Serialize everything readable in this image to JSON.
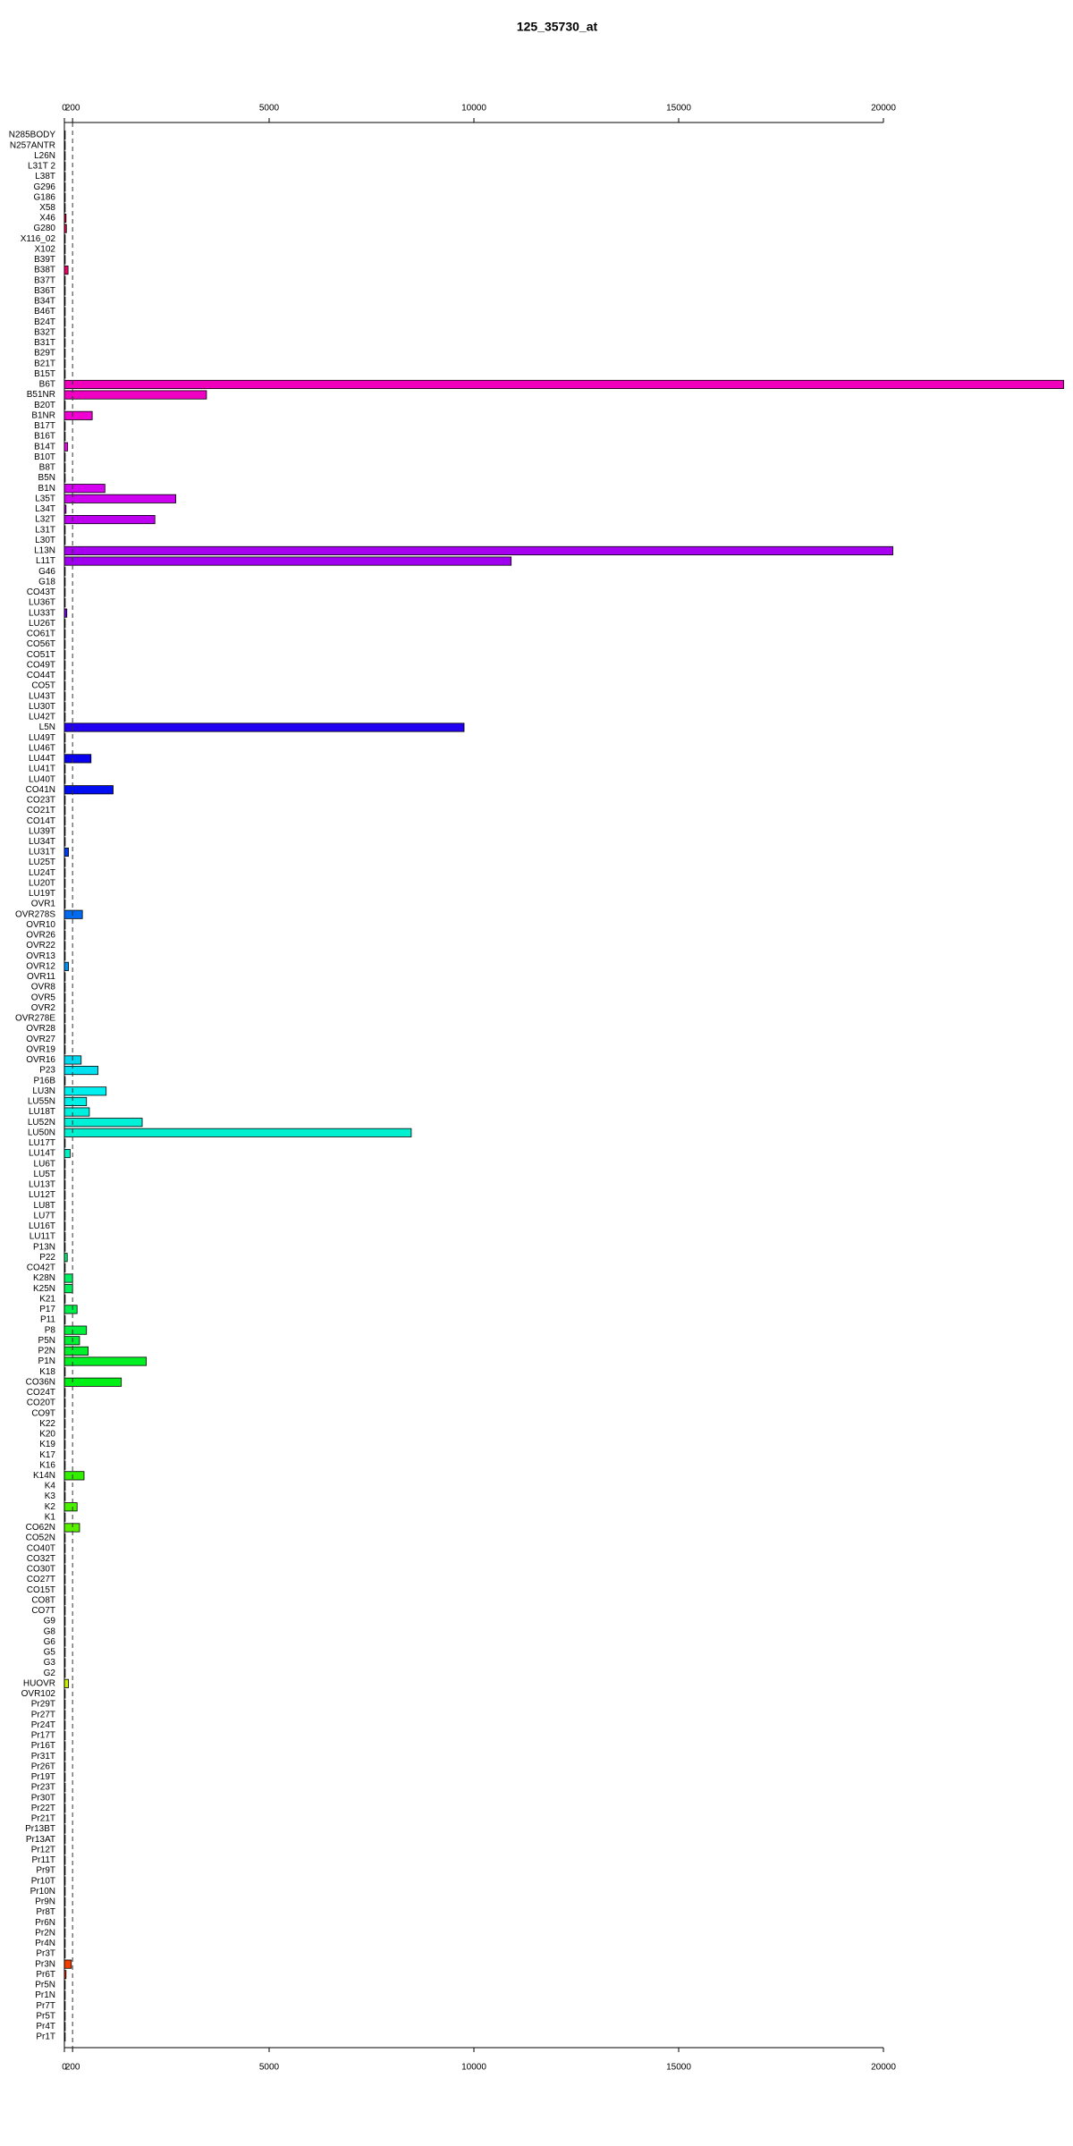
{
  "chart_data": {
    "type": "barh",
    "title": "125_35730_at",
    "categories": [
      "N285BODY",
      "N257ANTR",
      "L26N",
      "L31T 2",
      "L38T",
      "G296",
      "G186",
      "X58",
      "X46",
      "G280",
      "X116_02",
      "X102",
      "B39T",
      "B38T",
      "B37T",
      "B36T",
      "B34T",
      "B46T",
      "B24T",
      "B32T",
      "B31T",
      "B29T",
      "B21T",
      "B15T",
      "B6T",
      "B51NR",
      "B20T",
      "B1NR",
      "B17T",
      "B16T",
      "B14T",
      "B10T",
      "B8T",
      "B5N",
      "B1N",
      "L35T",
      "L34T",
      "L32T",
      "L31T",
      "L30T",
      "L13N",
      "L11T",
      "G46",
      "G18",
      "CO43T",
      "LU36T",
      "LU33T",
      "LU26T",
      "CO61T",
      "CO56T",
      "CO51T",
      "CO49T",
      "CO44T",
      "CO5T",
      "LU43T",
      "LU30T",
      "LU42T",
      "L5N",
      "LU49T",
      "LU46T",
      "LU44T",
      "LU41T",
      "LU40T",
      "CO41N",
      "CO23T",
      "CO21T",
      "CO14T",
      "LU39T",
      "LU34T",
      "LU31T",
      "LU25T",
      "LU24T",
      "LU20T",
      "LU19T",
      "OVR1",
      "OVR278S",
      "OVR10",
      "OVR26",
      "OVR22",
      "OVR13",
      "OVR12",
      "OVR11",
      "OVR8",
      "OVR5",
      "OVR2",
      "OVR278E",
      "OVR28",
      "OVR27",
      "OVR19",
      "OVR16",
      "P23",
      "P16B",
      "LU3N",
      "LU55N",
      "LU18T",
      "LU52N",
      "LU50N",
      "LU17T",
      "LU14T",
      "LU6T",
      "LU5T",
      "LU13T",
      "LU12T",
      "LU8T",
      "LU7T",
      "LU16T",
      "LU11T",
      "P13N",
      "P22",
      "CO42T",
      "K28N",
      "K25N",
      "K21",
      "P17",
      "P11",
      "P8",
      "P5N",
      "P2N",
      "P1N",
      "K18",
      "CO36N",
      "CO24T",
      "CO20T",
      "CO9T",
      "K22",
      "K20",
      "K19",
      "K17",
      "K16",
      "K14N",
      "K4",
      "K3",
      "K2",
      "K1",
      "CO62N",
      "CO52N",
      "CO40T",
      "CO32T",
      "CO30T",
      "CO27T",
      "CO15T",
      "CO8T",
      "CO7T",
      "G9",
      "G8",
      "G6",
      "G5",
      "G3",
      "G2",
      "HUOVR",
      "OVR102",
      "Pr29T",
      "Pr27T",
      "Pr24T",
      "Pr17T",
      "Pr16T",
      "Pr31T",
      "Pr26T",
      "Pr19T",
      "Pr23T",
      "Pr30T",
      "Pr22T",
      "Pr21T",
      "Pr13BT",
      "Pr13AT",
      "Pr12T",
      "Pr11T",
      "Pr9T",
      "Pr10T",
      "Pr10N",
      "Pr9N",
      "Pr8T",
      "Pr6N",
      "Pr2N",
      "Pr4N",
      "Pr3T",
      "Pr3N",
      "Pr6T",
      "Pr5N",
      "Pr1N",
      "Pr7T",
      "Pr5T",
      "Pr4T",
      "Pr1T"
    ],
    "values": [
      20,
      20,
      20,
      20,
      20,
      20,
      20,
      20,
      40,
      50,
      20,
      20,
      20,
      90,
      20,
      20,
      20,
      20,
      20,
      20,
      20,
      20,
      20,
      20,
      24400,
      3470,
      20,
      680,
      20,
      20,
      80,
      20,
      20,
      20,
      990,
      2720,
      40,
      2210,
      20,
      20,
      20230,
      10910,
      20,
      20,
      20,
      20,
      60,
      20,
      20,
      20,
      20,
      20,
      20,
      20,
      20,
      20,
      20,
      9760,
      20,
      20,
      650,
      20,
      20,
      1190,
      20,
      20,
      20,
      20,
      20,
      100,
      20,
      20,
      20,
      20,
      20,
      440,
      20,
      20,
      20,
      20,
      100,
      20,
      20,
      20,
      20,
      20,
      20,
      20,
      20,
      410,
      820,
      20,
      1020,
      540,
      610,
      1900,
      8470,
      20,
      140,
      20,
      20,
      20,
      20,
      20,
      20,
      20,
      20,
      20,
      70,
      20,
      200,
      200,
      20,
      310,
      20,
      540,
      370,
      580,
      2000,
      20,
      1390,
      20,
      20,
      20,
      20,
      20,
      20,
      20,
      20,
      480,
      20,
      20,
      310,
      20,
      370,
      20,
      20,
      20,
      20,
      20,
      20,
      20,
      20,
      20,
      20,
      20,
      20,
      20,
      20,
      100,
      20,
      20,
      20,
      20,
      20,
      20,
      20,
      20,
      20,
      20,
      20,
      20,
      20,
      20,
      20,
      20,
      20,
      20,
      20,
      20,
      20,
      20,
      20,
      20,
      20,
      20,
      170,
      40,
      20,
      20,
      20,
      20,
      20,
      20
    ],
    "colormap": "rainbow",
    "xlim": [
      0,
      24500
    ],
    "xticks": [
      0,
      200,
      5000,
      10000,
      15000,
      20000
    ],
    "reference_line": 200
  }
}
